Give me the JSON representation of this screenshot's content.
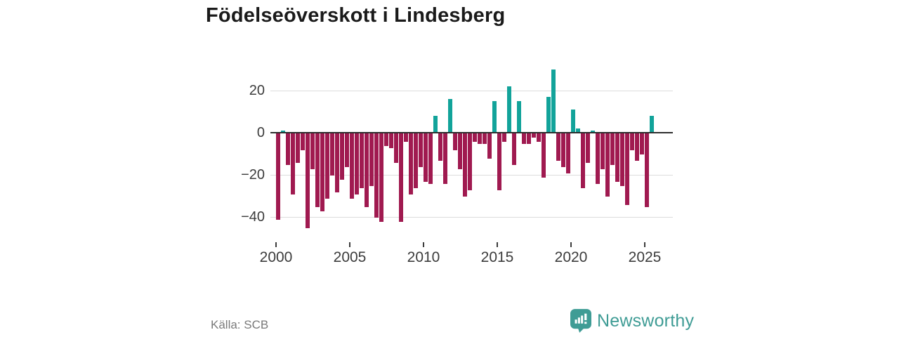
{
  "title": "Födelseöverskott i Lindesberg",
  "source_label": "Källa: SCB",
  "brand": {
    "name": "Newsworthy",
    "icon": "newsworthy-bubble-chart-icon",
    "color": "#3f9c95"
  },
  "chart_data": {
    "type": "bar",
    "title": "Födelseöverskott i Lindesberg",
    "xlabel": "",
    "ylabel": "",
    "period": "tertial (3 bars per year)",
    "ylim": [
      -50,
      34
    ],
    "yticks": [
      20,
      0,
      -20,
      -40
    ],
    "ytick_labels": [
      "20",
      "0",
      "−20",
      "−40"
    ],
    "xticks": [
      2000,
      2005,
      2010,
      2015,
      2020,
      2025
    ],
    "xtick_labels": [
      "2000",
      "2005",
      "2010",
      "2015",
      "2020",
      "2025"
    ],
    "grid": "horizontal",
    "legend": "none",
    "positive_color": "#12a39a",
    "negative_color": "#a01a50",
    "years": [
      {
        "year": 2000,
        "values": [
          -41,
          1,
          -15
        ]
      },
      {
        "year": 2001,
        "values": [
          -29,
          -14,
          -8
        ]
      },
      {
        "year": 2002,
        "values": [
          -45,
          -17,
          -35
        ]
      },
      {
        "year": 2003,
        "values": [
          -37,
          -31,
          -20
        ]
      },
      {
        "year": 2004,
        "values": [
          -28,
          -22,
          -16
        ]
      },
      {
        "year": 2005,
        "values": [
          -31,
          -29,
          -26
        ]
      },
      {
        "year": 2006,
        "values": [
          -35,
          -25,
          -40
        ]
      },
      {
        "year": 2007,
        "values": [
          -42,
          -6,
          -7
        ]
      },
      {
        "year": 2008,
        "values": [
          -14,
          -42,
          -4
        ]
      },
      {
        "year": 2009,
        "values": [
          -29,
          -26,
          -16
        ]
      },
      {
        "year": 2010,
        "values": [
          -23,
          -24,
          8
        ]
      },
      {
        "year": 2011,
        "values": [
          -13,
          -24,
          16
        ]
      },
      {
        "year": 2012,
        "values": [
          -8,
          -17,
          -30
        ]
      },
      {
        "year": 2013,
        "values": [
          -27,
          -4,
          -5
        ]
      },
      {
        "year": 2014,
        "values": [
          -5,
          -12,
          15
        ]
      },
      {
        "year": 2015,
        "values": [
          -27,
          -4,
          22
        ]
      },
      {
        "year": 2016,
        "values": [
          -15,
          15,
          -5
        ]
      },
      {
        "year": 2017,
        "values": [
          -5,
          -2,
          -4
        ]
      },
      {
        "year": 2018,
        "values": [
          -21,
          17,
          30
        ]
      },
      {
        "year": 2019,
        "values": [
          -13,
          -16,
          -19
        ]
      },
      {
        "year": 2020,
        "values": [
          11,
          2,
          -26
        ]
      },
      {
        "year": 2021,
        "values": [
          -14,
          1,
          -24
        ]
      },
      {
        "year": 2022,
        "values": [
          -17,
          -30,
          -15
        ]
      },
      {
        "year": 2023,
        "values": [
          -23,
          -25,
          -34
        ]
      },
      {
        "year": 2024,
        "values": [
          -8,
          -13,
          -10
        ]
      },
      {
        "year": 2025,
        "values": [
          -35,
          8
        ]
      }
    ]
  }
}
